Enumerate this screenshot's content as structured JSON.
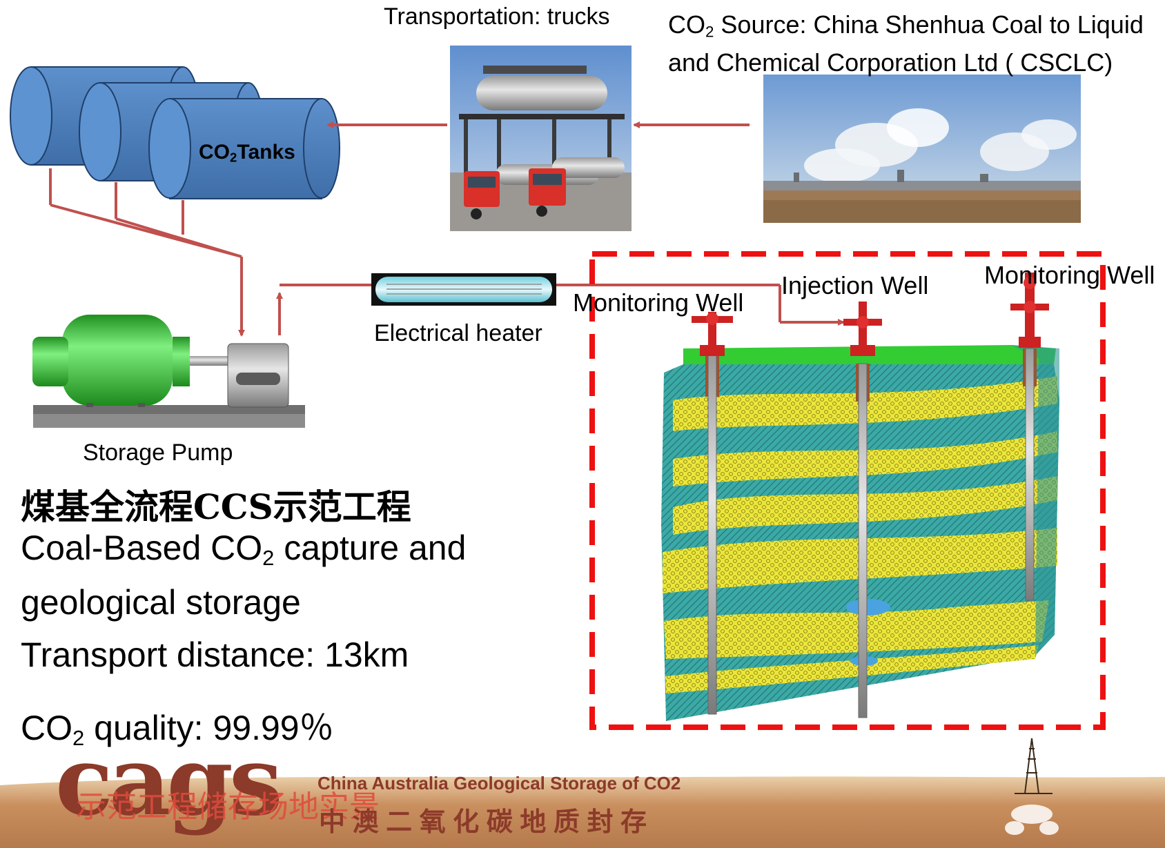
{
  "labels": {
    "transport_title": "Transportation: trucks",
    "source_line1_pre": "CO",
    "source_line1_sub": "2",
    "source_line1_post": " Source: China Shenhua Coal to Liquid",
    "source_line2": "and Chemical Corporation Ltd ( CSCLC)",
    "tanks_pre": "CO",
    "tanks_sub": "2",
    "tanks_post": "Tanks",
    "heater": "Electrical heater",
    "pump": "Storage Pump",
    "monitoring_well_left": "Monitoring Well",
    "injection_well": "Injection Well",
    "monitoring_well_right": "Monitoring Well"
  },
  "text": {
    "chinese_title": "煤基全流程CCS示范工程",
    "english_title_pre": "Coal-Based CO",
    "english_title_sub": "2",
    "english_title_post": " capture and",
    "english_title_line2": "geological storage",
    "transport_distance": "Transport distance: 13km",
    "quality_pre": "CO",
    "quality_sub": "2",
    "quality_post": " quality: 99.99％"
  },
  "footer": {
    "logo": "cags",
    "overlay": "示范工程储存场地实景",
    "english": "China Australia Geological Storage of CO2",
    "chinese": "中 澳 二 氧 化 碳 地 质 封 存"
  },
  "colors": {
    "arrow": "#c0504d",
    "tank": "#4f81bd",
    "pump_motor": "#3cc43c",
    "dashed_box": "#ee1111",
    "rock_teal": "#3aa6a4",
    "sand_yellow": "#e8e234",
    "ground_green": "#33cc33"
  }
}
